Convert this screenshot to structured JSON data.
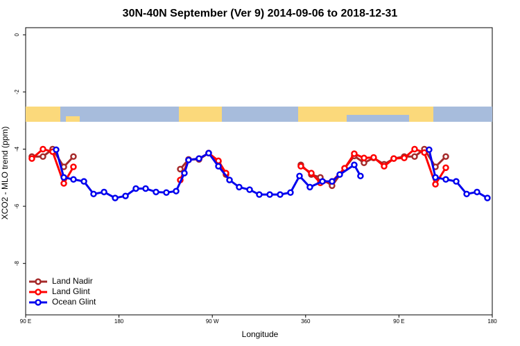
{
  "chart_data": {
    "type": "line",
    "title": "30N-40N September (Ver 9)   2014-09-06 to 2018-12-31",
    "x_label": "Longitude",
    "y_label": "XCO2 - MLO trend (ppm)",
    "xlim": [
      90,
      540
    ],
    "ylim": [
      -9.8,
      0.25
    ],
    "xticks": [
      {
        "value": 90,
        "label": "90 E"
      },
      180,
      {
        "value": 270,
        "label": "90 W"
      },
      360,
      {
        "value": 450,
        "label": "90 E"
      },
      {
        "value": 540,
        "label": "180"
      }
    ],
    "yticks": [
      0,
      -2,
      -4,
      -6,
      -8
    ],
    "legend": "bottom-left",
    "series": [
      {
        "name": "Land Nadir",
        "color": "#a52a2a",
        "x": [
          96,
          106.7,
          116,
          126.8,
          136.1,
          null,
          239.1,
          247.1,
          257.2,
          266.5,
          275.9,
          283.2,
          null,
          355.4,
          365.5,
          374.2,
          385.5,
          397.6,
          406.9,
          416.3,
          425.6,
          435.7,
          445,
          455.1,
          465.1,
          474.5,
          485.2,
          495.2
        ],
        "values": [
          -4.26,
          -4.26,
          -4.0,
          -4.62,
          -4.26,
          null,
          -4.7,
          -4.36,
          -4.36,
          -4.14,
          -4.43,
          -4.89,
          null,
          -4.55,
          -4.89,
          -4.99,
          -5.28,
          -4.67,
          -4.24,
          -4.48,
          -4.31,
          -4.53,
          -4.33,
          -4.26,
          -4.26,
          -4.0,
          -4.62,
          -4.26
        ]
      },
      {
        "name": "Land Glint",
        "color": "#ff0000",
        "x": [
          96,
          106.7,
          116,
          126.8,
          136.1,
          null,
          239.1,
          247.1,
          257.2,
          266.5,
          275.9,
          283.2,
          null,
          355.4,
          365.5,
          374.2,
          385.5,
          397.6,
          406.9,
          416.3,
          425.6,
          435.7,
          445,
          455.1,
          465.1,
          474.5,
          485.2,
          495.2
        ],
        "values": [
          -4.33,
          -4.0,
          -4.09,
          -5.2,
          -4.62,
          null,
          -5.08,
          -4.38,
          -4.33,
          -4.14,
          -4.41,
          -4.84,
          null,
          -4.6,
          -4.84,
          -5.18,
          -5.13,
          -4.67,
          -4.16,
          -4.31,
          -4.29,
          -4.6,
          -4.33,
          -4.31,
          -4.0,
          -4.12,
          -5.23,
          -4.65
        ]
      },
      {
        "name": "Ocean Glint",
        "color": "#0000ee",
        "x": [
          119.4,
          126.8,
          136.1,
          146.2,
          155.5,
          165.6,
          176.3,
          186.3,
          196.3,
          205.7,
          215.7,
          225.7,
          235.1,
          243.1,
          247.1,
          257.2,
          266.5,
          275.9,
          286.6,
          295.9,
          306,
          315.3,
          325.4,
          335.4,
          345.4,
          354.1,
          364.1,
          376.2,
          385.5,
          392.9,
          406.9,
          412.9,
          null,
          479.1,
          485.2,
          495.2,
          505.2,
          515.3,
          525.3,
          535.3
        ],
        "values": [
          -4.02,
          -4.99,
          -5.06,
          -5.13,
          -5.57,
          -5.5,
          -5.71,
          -5.64,
          -5.38,
          -5.38,
          -5.5,
          -5.52,
          -5.47,
          -4.84,
          -4.38,
          -4.33,
          -4.14,
          -4.6,
          -5.08,
          -5.33,
          -5.42,
          -5.59,
          -5.59,
          -5.59,
          -5.52,
          -4.94,
          -5.33,
          -5.13,
          -5.13,
          -4.89,
          -4.55,
          -4.94,
          null,
          -4.02,
          -4.99,
          -5.06,
          -5.13,
          -5.57,
          -5.5,
          -5.71
        ]
      }
    ]
  }
}
